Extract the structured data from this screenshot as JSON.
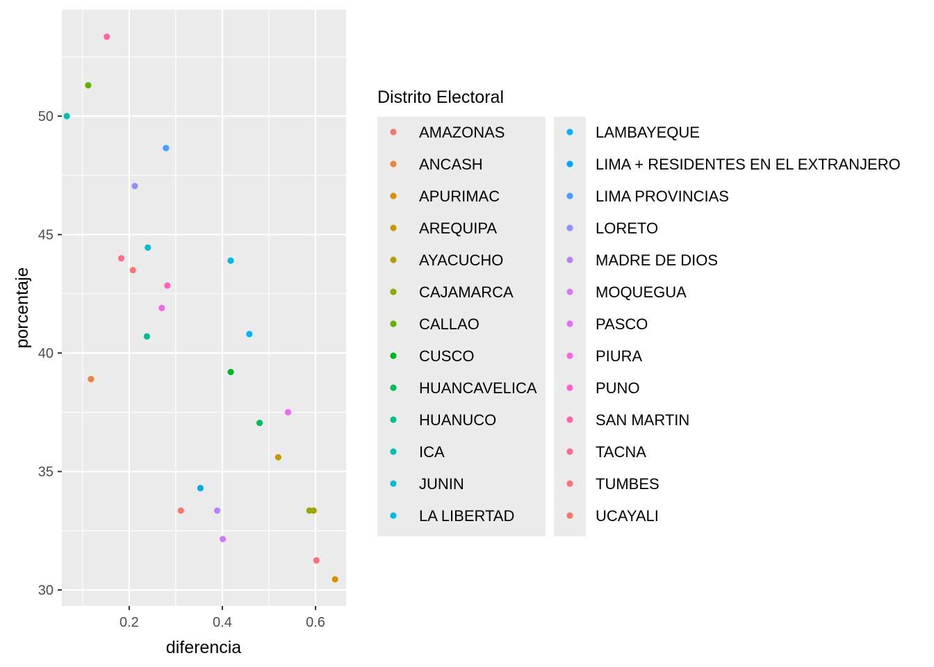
{
  "chart_data": {
    "type": "scatter",
    "xlabel": "diferencia",
    "ylabel": "porcentaje",
    "xlim": [
      0.0554,
      0.6657
    ],
    "ylim": [
      29.33,
      54.49
    ],
    "x_ticks": [
      0.2,
      0.4,
      0.6
    ],
    "x_tick_labels": [
      "0.2",
      "0.4",
      "0.6"
    ],
    "y_ticks": [
      30,
      35,
      40,
      45,
      50
    ],
    "y_tick_labels": [
      "30",
      "35",
      "40",
      "45",
      "50"
    ],
    "grid": true,
    "legend": {
      "title": "Distrito Electoral",
      "placement": "right",
      "columns": 2
    },
    "series": [
      {
        "name": "AMAZONAS",
        "color": "#F8766D",
        "x": 0.208,
        "y": 43.5
      },
      {
        "name": "ANCASH",
        "color": "#EC8239",
        "x": 0.118,
        "y": 38.9
      },
      {
        "name": "APURIMAC",
        "color": "#DB8E00",
        "x": 0.642,
        "y": 30.45
      },
      {
        "name": "AREQUIPA",
        "color": "#C69900",
        "x": 0.52,
        "y": 35.6
      },
      {
        "name": "AYACUCHO",
        "color": "#AEA200",
        "x": 0.596,
        "y": 33.35
      },
      {
        "name": "CAJAMARCA",
        "color": "#8FAA00",
        "x": 0.587,
        "y": 33.35
      },
      {
        "name": "CALLAO",
        "color": "#64B200",
        "x": 0.112,
        "y": 51.3
      },
      {
        "name": "CUSCO",
        "color": "#00B81B",
        "x": 0.418,
        "y": 39.2
      },
      {
        "name": "HUANCAVELICA",
        "color": "#00BD5C",
        "x": 0.48,
        "y": 37.05
      },
      {
        "name": "HUANUCO",
        "color": "#00C08E",
        "x": 0.238,
        "y": 40.7
      },
      {
        "name": "ICA",
        "color": "#00C1B2",
        "x": 0.066,
        "y": 50.0
      },
      {
        "name": "JUNIN",
        "color": "#00BFD1",
        "x": 0.24,
        "y": 44.45
      },
      {
        "name": "LA LIBERTAD",
        "color": "#00BBE9",
        "x": 0.418,
        "y": 43.9
      },
      {
        "name": "LAMBAYEQUE",
        "color": "#00B4FA",
        "x": 0.458,
        "y": 40.8
      },
      {
        "name": "LIMA + RESIDENTES EN EL EXTRANJERO",
        "color": "#00A9FF",
        "x": 0.353,
        "y": 34.3
      },
      {
        "name": "LIMA PROVINCIAS",
        "color": "#4A9DFF",
        "x": 0.279,
        "y": 48.65
      },
      {
        "name": "LORETO",
        "color": "#8F91FF",
        "x": 0.212,
        "y": 47.05
      },
      {
        "name": "MADRE DE DIOS",
        "color": "#B684FF",
        "x": 0.389,
        "y": 33.35
      },
      {
        "name": "MOQUEGUA",
        "color": "#D377FF",
        "x": 0.401,
        "y": 32.15
      },
      {
        "name": "PASCO",
        "color": "#E86BF6",
        "x": 0.541,
        "y": 37.5
      },
      {
        "name": "PIURA",
        "color": "#F763E4",
        "x": 0.27,
        "y": 41.9
      },
      {
        "name": "PUNO",
        "color": "#FF61C9",
        "x": 0.282,
        "y": 42.85
      },
      {
        "name": "SAN MARTIN",
        "color": "#FF64AB",
        "x": 0.152,
        "y": 53.35
      },
      {
        "name": "TACNA",
        "color": "#FF6B8E",
        "x": 0.183,
        "y": 44.0
      },
      {
        "name": "TUMBES",
        "color": "#FC7178",
        "x": 0.602,
        "y": 31.25
      },
      {
        "name": "UCAYALI",
        "color": "#F8766D",
        "x": 0.311,
        "y": 33.35
      }
    ]
  }
}
